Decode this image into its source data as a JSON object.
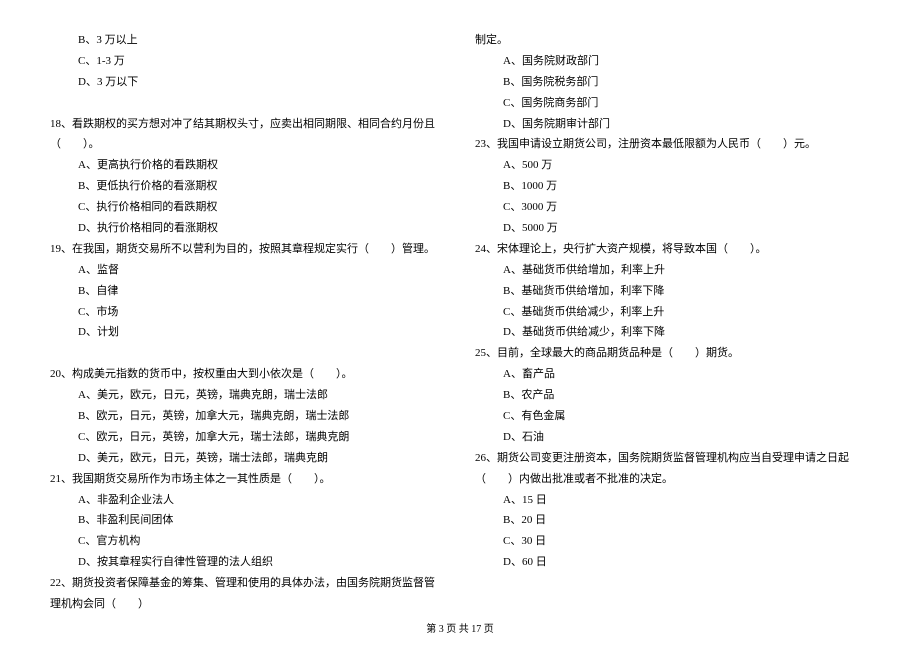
{
  "left_column": {
    "q17_options": [
      "B、3 万以上",
      "C、1-3 万",
      "D、3 万以下"
    ],
    "q18": {
      "text": "18、看跌期权的买方想对冲了结其期权头寸，应卖出相同期限、相同合约月份且（　　）。",
      "options": [
        "A、更高执行价格的看跌期权",
        "B、更低执行价格的看涨期权",
        "C、执行价格相同的看跌期权",
        "D、执行价格相同的看涨期权"
      ]
    },
    "q19": {
      "text": "19、在我国，期货交易所不以营利为目的，按照其章程规定实行（　　）管理。",
      "options": [
        "A、监督",
        "B、自律",
        "C、市场",
        "D、计划"
      ]
    },
    "q20": {
      "text": "20、构成美元指数的货币中，按权重由大到小依次是（　　）。",
      "options": [
        "A、美元，欧元，日元，英镑，瑞典克朗，瑞士法郎",
        "B、欧元，日元，英镑，加拿大元，瑞典克朗，瑞士法郎",
        "C、欧元，日元，英镑，加拿大元，瑞士法郎，瑞典克朗",
        "D、美元，欧元，日元，英镑，瑞士法郎，瑞典克朗"
      ]
    },
    "q21": {
      "text": "21、我国期货交易所作为市场主体之一其性质是（　　）。",
      "options": [
        "A、非盈利企业法人",
        "B、非盈利民间团体",
        "C、官方机构",
        "D、按其章程实行自律性管理的法人组织"
      ]
    },
    "q22": {
      "text": "22、期货投资者保障基金的筹集、管理和使用的具体办法，由国务院期货监督管理机构会同（　　）"
    }
  },
  "right_column": {
    "q22_cont": "制定。",
    "q22_options": [
      "A、国务院财政部门",
      "B、国务院税务部门",
      "C、国务院商务部门",
      "D、国务院期审计部门"
    ],
    "q23": {
      "text": "23、我国申请设立期货公司，注册资本最低限额为人民币（　　）元。",
      "options": [
        "A、500 万",
        "B、1000 万",
        "C、3000 万",
        "D、5000 万"
      ]
    },
    "q24": {
      "text": "24、宋体理论上，央行扩大资产规模，将导致本国（　　）。",
      "options": [
        "A、基础货币供给增加，利率上升",
        "B、基础货币供给增加，利率下降",
        "C、基础货币供给减少，利率上升",
        "D、基础货币供给减少，利率下降"
      ]
    },
    "q25": {
      "text": "25、目前，全球最大的商品期货品种是（　　）期货。",
      "options": [
        "A、畜产品",
        "B、农产品",
        "C、有色金属",
        "D、石油"
      ]
    },
    "q26": {
      "text": "26、期货公司变更注册资本，国务院期货监督管理机构应当自受理申请之日起（　　）内做出批准或者不批准的决定。",
      "options": [
        "A、15 日",
        "B、20 日",
        "C、30 日",
        "D、60 日"
      ]
    }
  },
  "footer": "第 3 页 共 17 页"
}
